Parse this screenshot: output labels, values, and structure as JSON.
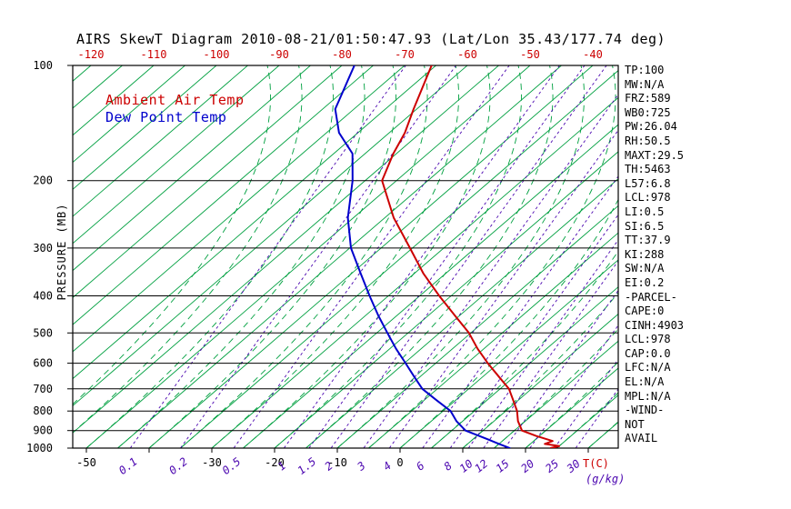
{
  "title": "AIRS SkewT Diagram 2010-08-21/01:50:47.93 (Lat/Lon 35.43/177.74 deg)",
  "axes": {
    "y": "PRESSURE (MB)",
    "x_temp": "T(C)",
    "x_mix": "(g/kg)"
  },
  "stats": [
    "TP:100",
    "MW:N/A",
    "FRZ:589",
    "WB0:725",
    "PW:26.04",
    "RH:50.5",
    "MAXT:29.5",
    "TH:5463",
    "L57:6.8",
    "LCL:978",
    "LI:0.5",
    "SI:6.5",
    "TT:37.9",
    "KI:288",
    "SW:N/A",
    "EI:0.2",
    "-PARCEL-",
    "CAPE:0",
    "CINH:4903",
    "LCL:978",
    "CAP:0.0",
    "LFC:N/A",
    "EL:N/A",
    "MPL:N/A",
    "-WIND-",
    "NOT",
    "AVAIL"
  ],
  "colors": {
    "temp": "#cc0000",
    "dew": "#0000cc",
    "isotherm": "#00a040",
    "adiabat": "#00a040",
    "mixing": "#4b06b0",
    "axis": "#000000"
  },
  "chart_data": {
    "type": "line",
    "title": "AIRS SkewT Diagram 2010-08-21/01:50:47.93 (Lat/Lon 35.43/177.74 deg)",
    "ylabel": "PRESSURE (MB)",
    "xlabel": "T(C)",
    "x2label": "(g/kg)",
    "y_scale": "log",
    "ylim": [
      1000,
      100
    ],
    "grid": true,
    "legend_position": "top-left",
    "pressure_ticks": [
      100,
      200,
      300,
      400,
      500,
      600,
      700,
      800,
      900,
      1000
    ],
    "top_temp_ticks_c": [
      -120,
      -110,
      -100,
      -90,
      -80,
      -70,
      -60,
      -50,
      -40
    ],
    "bottom_temp_ticks_c": [
      -50,
      -30,
      -20,
      -10,
      0
    ],
    "mixing_ratio_ticks_gkg": [
      0.1,
      0.2,
      0.5,
      1,
      1.5,
      2,
      3,
      4,
      6,
      8,
      10,
      12,
      15,
      20,
      25,
      30
    ],
    "mixing_ratio_t_at_1000mb_c": [
      -43,
      -35,
      -26.5,
      -18.5,
      -14.5,
      -11,
      -5.8,
      -1.7,
      3.6,
      8,
      10.9,
      13.3,
      16.7,
      20.7,
      24.6,
      28
    ],
    "series": [
      {
        "name": "Ambient Air Temp",
        "color": "#cc0000",
        "units": {
          "p": "mb",
          "t": "C"
        },
        "points": [
          [
            1000,
            24.0
          ],
          [
            988,
            25.0
          ],
          [
            975,
            22.3
          ],
          [
            958,
            23.0
          ],
          [
            930,
            19.5
          ],
          [
            900,
            16.2
          ],
          [
            850,
            13.8
          ],
          [
            800,
            11.8
          ],
          [
            750,
            9.2
          ],
          [
            700,
            6.4
          ],
          [
            650,
            2.5
          ],
          [
            600,
            -1.7
          ],
          [
            550,
            -6.0
          ],
          [
            500,
            -10.3
          ],
          [
            450,
            -15.8
          ],
          [
            400,
            -21.9
          ],
          [
            350,
            -28.5
          ],
          [
            300,
            -35.4
          ],
          [
            250,
            -43.6
          ],
          [
            200,
            -52.3
          ],
          [
            170,
            -55.5
          ],
          [
            150,
            -57.5
          ],
          [
            130,
            -60.5
          ],
          [
            100,
            -65.7
          ]
        ]
      },
      {
        "name": "Dew Point Temp",
        "color": "#0000cc",
        "units": {
          "p": "mb",
          "t": "C"
        },
        "points": [
          [
            1000,
            17.5
          ],
          [
            975,
            15.0
          ],
          [
            950,
            12.5
          ],
          [
            900,
            7.2
          ],
          [
            850,
            4.0
          ],
          [
            800,
            1.2
          ],
          [
            750,
            -3.0
          ],
          [
            700,
            -7.4
          ],
          [
            650,
            -11.0
          ],
          [
            600,
            -14.8
          ],
          [
            550,
            -19.0
          ],
          [
            500,
            -23.3
          ],
          [
            450,
            -28.0
          ],
          [
            400,
            -33.0
          ],
          [
            350,
            -38.5
          ],
          [
            300,
            -44.8
          ],
          [
            250,
            -50.9
          ],
          [
            200,
            -57.0
          ],
          [
            170,
            -62.0
          ],
          [
            150,
            -68.0
          ],
          [
            130,
            -73.0
          ],
          [
            100,
            -78.0
          ]
        ]
      }
    ]
  }
}
